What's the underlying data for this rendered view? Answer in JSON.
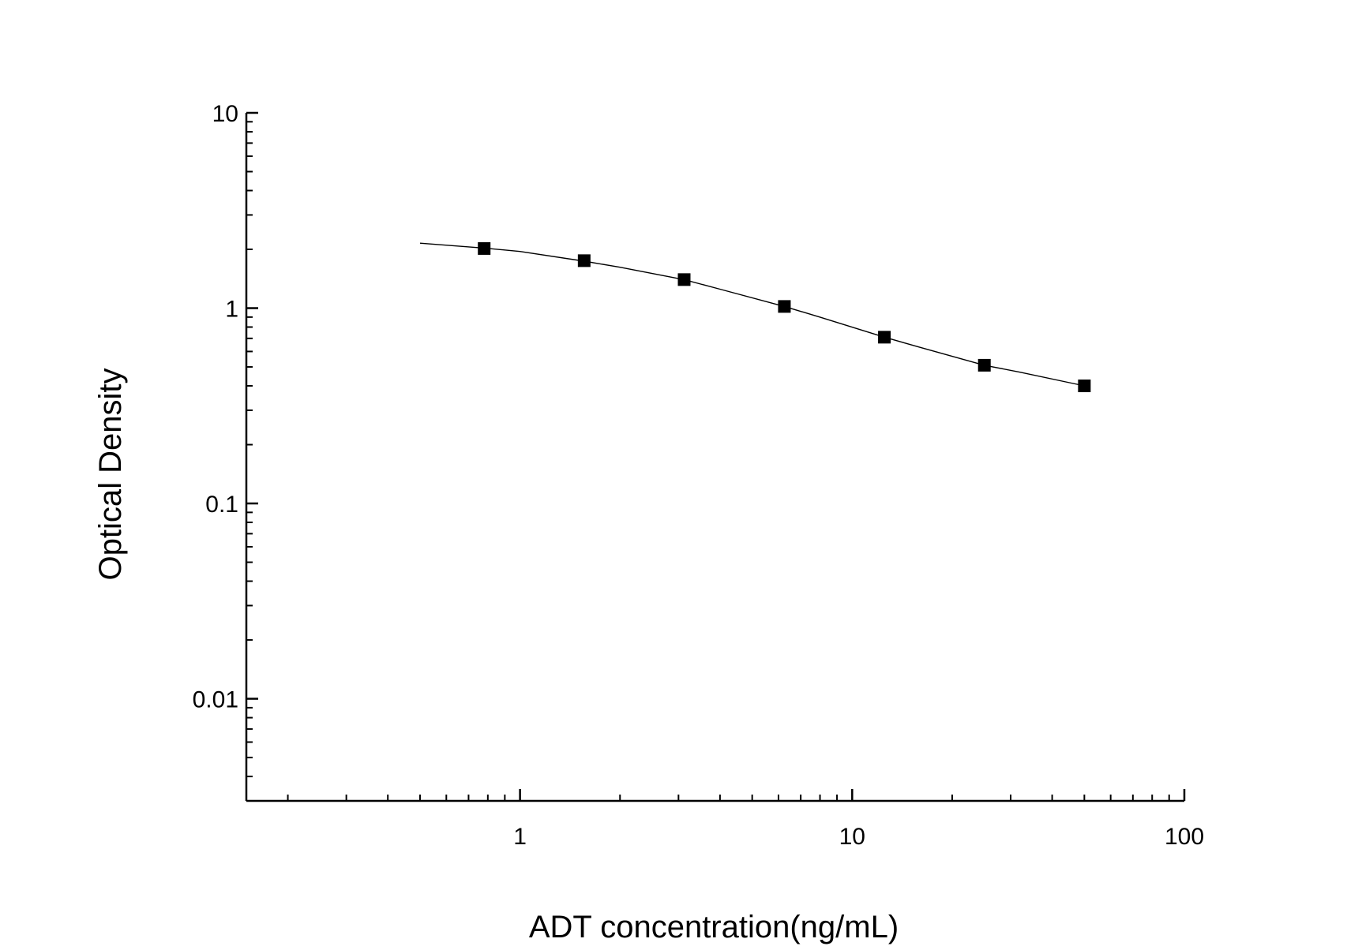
{
  "chart_data": {
    "type": "scatter",
    "title": "",
    "xlabel": "ADT concentration(ng/mL)",
    "ylabel": "Optical Density",
    "x_scale": "log",
    "y_scale": "log",
    "xlim": [
      0.15,
      100
    ],
    "ylim": [
      0.003,
      10
    ],
    "x_ticks": [
      {
        "value": 1,
        "label": "1"
      },
      {
        "value": 10,
        "label": "10"
      },
      {
        "value": 100,
        "label": "100"
      }
    ],
    "y_ticks": [
      {
        "value": 10,
        "label": "10"
      },
      {
        "value": 1,
        "label": "1"
      },
      {
        "value": 0.1,
        "label": "0.1"
      },
      {
        "value": 0.01,
        "label": "0.01"
      }
    ],
    "grid": false,
    "series": [
      {
        "type": "scatter",
        "marker": "square",
        "color": "#000000",
        "x": [
          0.78,
          1.56,
          3.12,
          6.25,
          12.5,
          25,
          50
        ],
        "y": [
          2.02,
          1.75,
          1.4,
          1.02,
          0.71,
          0.51,
          0.4
        ]
      },
      {
        "type": "line",
        "color": "#000000",
        "x": [
          0.5,
          0.78,
          1.0,
          1.56,
          2.0,
          3.12,
          4.0,
          6.25,
          8.0,
          12.5,
          16.0,
          25,
          32,
          50
        ],
        "y": [
          2.15,
          2.03,
          1.95,
          1.74,
          1.62,
          1.4,
          1.25,
          1.02,
          0.9,
          0.71,
          0.63,
          0.51,
          0.47,
          0.4
        ]
      }
    ]
  }
}
